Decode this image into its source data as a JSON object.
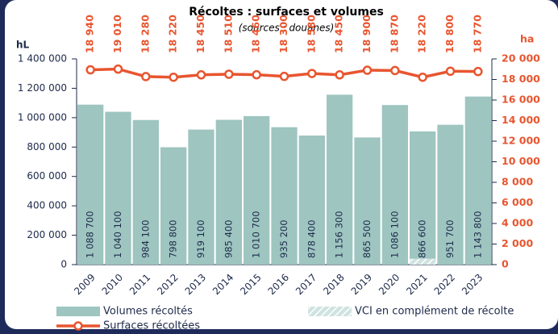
{
  "chart_data": {
    "type": "bar_line",
    "title": "Récoltes : surfaces et volumes",
    "subtitle": "(sources : douanes)",
    "y_label": "hL",
    "y2_label": "ha",
    "categories": [
      "2009",
      "2010",
      "2011",
      "2012",
      "2013",
      "2014",
      "2015",
      "2016",
      "2017",
      "2018",
      "2019",
      "2020",
      "2021",
      "2022",
      "2023"
    ],
    "series": [
      {
        "name": "VCI en complément de récolte",
        "color": "#9ec5c0",
        "type": "bar",
        "hatch": true,
        "values": [
          null,
          null,
          null,
          null,
          null,
          null,
          null,
          null,
          null,
          null,
          null,
          null,
          40000,
          null,
          null
        ]
      },
      {
        "name": "Volumes récoltés",
        "color": "#9ec5c0",
        "type": "bar",
        "values": [
          1088700,
          1040100,
          984100,
          798800,
          919100,
          985400,
          1010700,
          935200,
          878400,
          1156300,
          865500,
          1086100,
          866600,
          951700,
          1143800
        ],
        "value_labels": [
          "1 088 700",
          "1 040 100",
          "984 100",
          "798 800",
          "919 100",
          "985 400",
          "1 010 700",
          "935 200",
          "878 400",
          "1 156 300",
          "865 500",
          "1 086 100",
          "866 600",
          "951 700",
          "1 143 800"
        ]
      },
      {
        "name": "Surfaces récoltées",
        "color": "#e8552f",
        "type": "line",
        "axis": "y2",
        "values": [
          18940,
          19010,
          18280,
          18220,
          18450,
          18510,
          18460,
          18300,
          18580,
          18450,
          18900,
          18870,
          18220,
          18800,
          18770
        ],
        "value_labels": [
          "18 940",
          "19 010",
          "18 280",
          "18 220",
          "18 450",
          "18 510",
          "18 460",
          "18 300",
          "18 580",
          "18 450",
          "18 900",
          "18 870",
          "18 220",
          "18 800",
          "18 770"
        ]
      }
    ],
    "ylim": [
      0,
      1400000
    ],
    "yticks": [
      0,
      {
        "value": 200000,
        "label": "200 000"
      },
      {
        "value": 400000,
        "label": "400 000"
      },
      {
        "value": 600000,
        "label": "600 000"
      },
      {
        "value": 800000,
        "label": "800 000"
      },
      {
        "value": 1000000,
        "label": "1 000 000"
      },
      {
        "value": 1200000,
        "label": "1 200 000"
      },
      {
        "value": 1400000,
        "label": "1 400 000"
      }
    ],
    "y2lim": [
      0,
      20000
    ],
    "y2ticks": [
      0,
      {
        "value": 2000,
        "label": "2 000"
      },
      {
        "value": 4000,
        "label": "4 000"
      },
      {
        "value": 6000,
        "label": "6 000"
      },
      {
        "value": 8000,
        "label": "8 000"
      },
      {
        "value": 10000,
        "label": "10 000"
      },
      {
        "value": 12000,
        "label": "12 000"
      },
      {
        "value": 14000,
        "label": "14 000"
      },
      {
        "value": 16000,
        "label": "16 000"
      },
      {
        "value": 18000,
        "label": "18 000"
      },
      {
        "value": 20000,
        "label": "20 000"
      }
    ]
  }
}
